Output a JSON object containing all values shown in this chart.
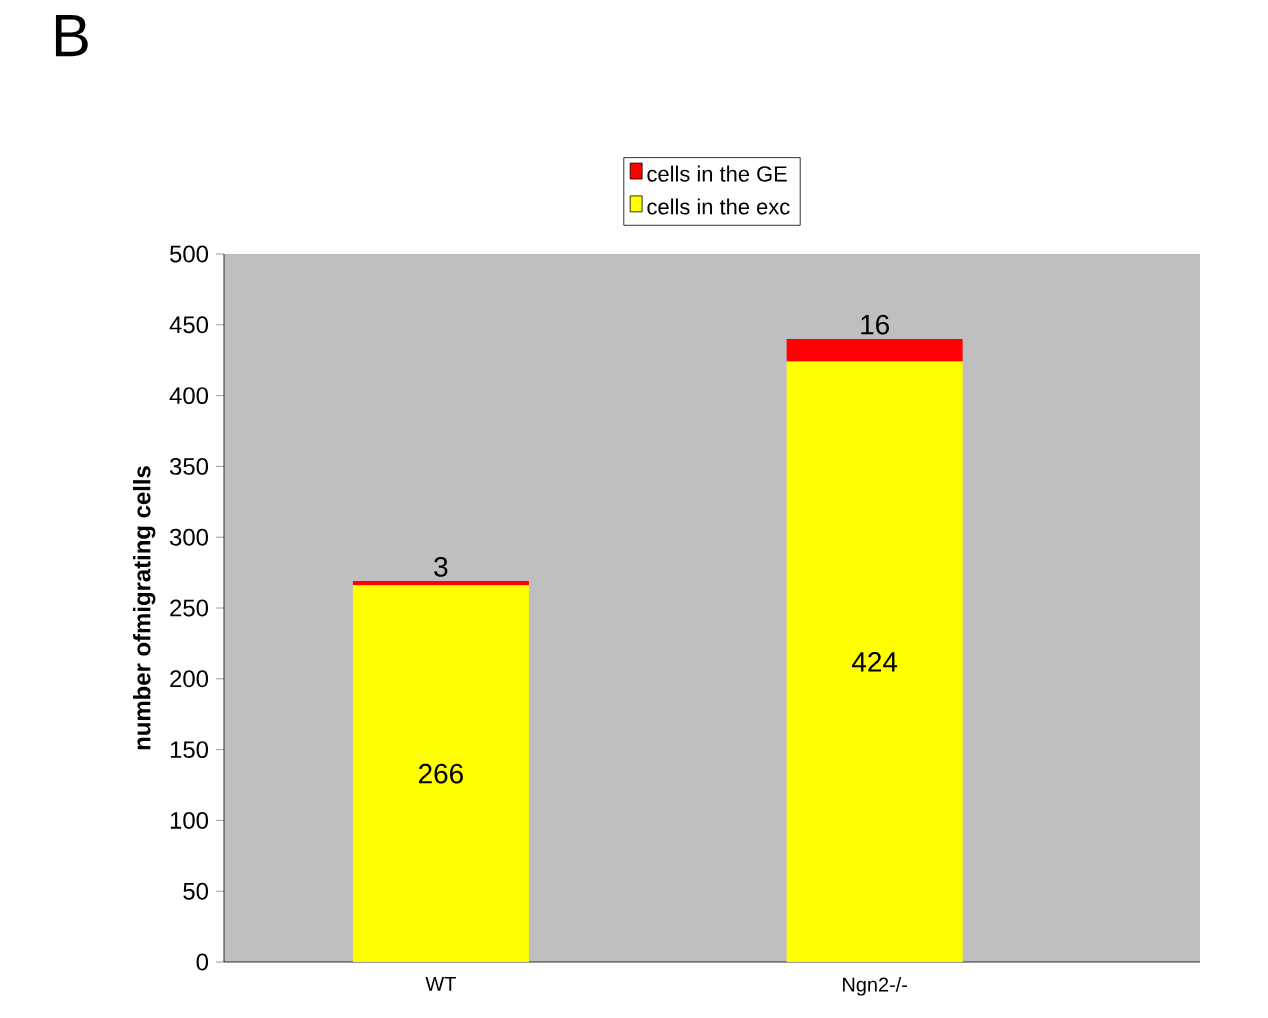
{
  "chart_data": {
    "type": "bar",
    "title": "B",
    "ylabel": "number ofmigrating cells",
    "categories": [
      "WT",
      "Ngn2-/-"
    ],
    "stacked": true,
    "series": [
      {
        "name": "cells    in    the exc",
        "color": "#ffff00",
        "values": [
          266,
          424
        ]
      },
      {
        "name": "cells  in the GE",
        "color": "#ff0000",
        "values": [
          3,
          16
        ]
      }
    ],
    "ylim": [
      0,
      500
    ],
    "yticks": [
      0,
      50,
      100,
      150,
      200,
      250,
      300,
      350,
      400,
      450,
      500
    ],
    "data_labels": true,
    "legend": "top",
    "grid": false
  }
}
